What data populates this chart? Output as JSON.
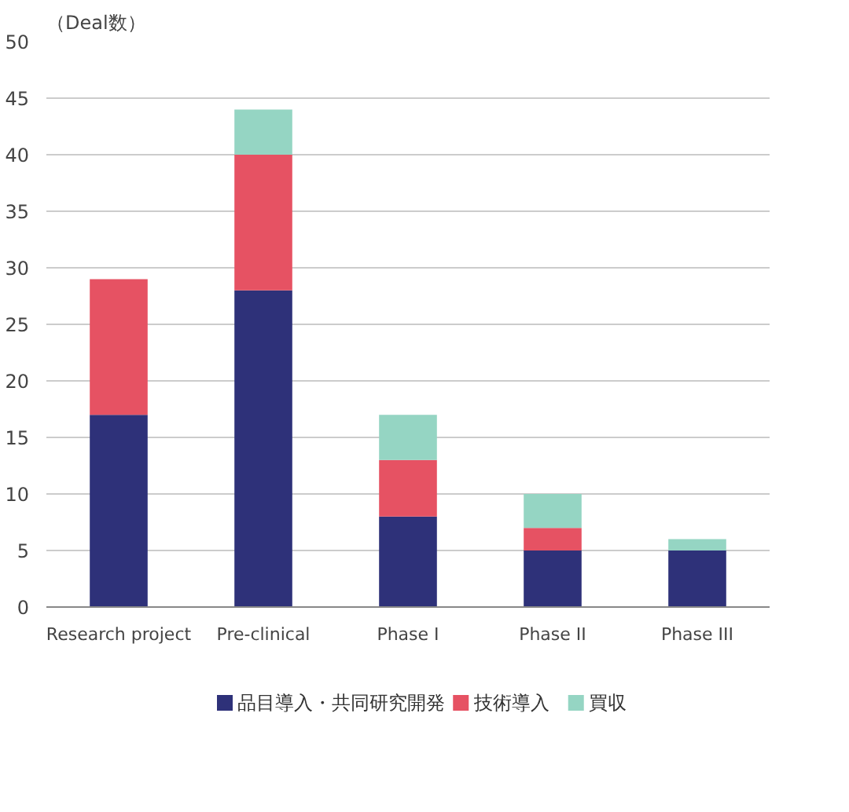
{
  "chart_data": {
    "type": "bar",
    "stacked": true,
    "ylabel": "（Deal数）",
    "categories": [
      "Research project",
      "Pre-clinical",
      "Phase I",
      "Phase II",
      "Phase III"
    ],
    "series": [
      {
        "name": "品目導入・共同研究開発",
        "color": "#2e3179",
        "values": [
          17,
          28,
          8,
          5,
          5
        ]
      },
      {
        "name": "技術導入",
        "color": "#e65263",
        "values": [
          12,
          12,
          5,
          2,
          0
        ]
      },
      {
        "name": "買収",
        "color": "#95d5c3",
        "values": [
          0,
          4,
          4,
          3,
          1
        ]
      }
    ],
    "ylim": [
      0,
      50
    ],
    "yticks": [
      0,
      5,
      10,
      15,
      20,
      25,
      30,
      35,
      40,
      45,
      50
    ],
    "grid": "y",
    "legend": "bottom"
  }
}
